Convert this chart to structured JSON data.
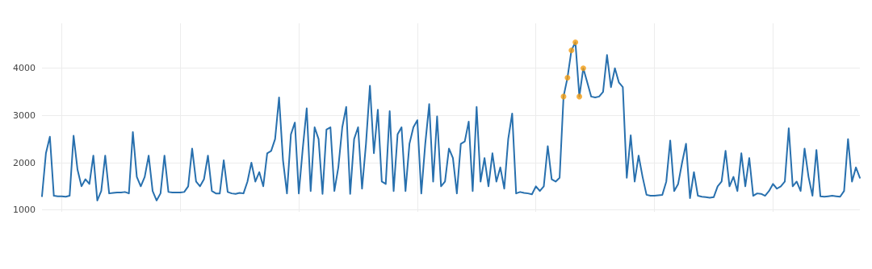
{
  "chart_data": {
    "type": "line",
    "categories": [
      null,
      null,
      null,
      null,
      null,
      null,
      null,
      null,
      null,
      null,
      null,
      null,
      null,
      null,
      null,
      null,
      null,
      null,
      null,
      null,
      null,
      null,
      null,
      null,
      null,
      null,
      null,
      null,
      null,
      null,
      null,
      null,
      null,
      null,
      null,
      null,
      null,
      null,
      null,
      null,
      null,
      null,
      null,
      null,
      null,
      null,
      null,
      null,
      null,
      null,
      null,
      null,
      null,
      null,
      null,
      null,
      null,
      null,
      null,
      null,
      null,
      null,
      null,
      null,
      null,
      null,
      null,
      null,
      null,
      null,
      null,
      null,
      null,
      null,
      null,
      null,
      null,
      null,
      null,
      null,
      null,
      null,
      null,
      null,
      null,
      null,
      null,
      null,
      null,
      null,
      null,
      null,
      null,
      null,
      null,
      null,
      null,
      null,
      null,
      null,
      null,
      null,
      null,
      null,
      null,
      null,
      null,
      null,
      null,
      null,
      null,
      null,
      null,
      null,
      null,
      null,
      null,
      null,
      null,
      null,
      null,
      null,
      null,
      null,
      null,
      null,
      null,
      null,
      null,
      null,
      null,
      null,
      null,
      null,
      null,
      null,
      null,
      null,
      null,
      null,
      null,
      null,
      null,
      null,
      null,
      null,
      null,
      null,
      null,
      null,
      null,
      null,
      null,
      null,
      null,
      null,
      null,
      null,
      null,
      null,
      null,
      null,
      null,
      null,
      null,
      null,
      null,
      null,
      null,
      null,
      null,
      null,
      null,
      null,
      null,
      null,
      null,
      null,
      null,
      null,
      null,
      null,
      null,
      null,
      null,
      null,
      null,
      null,
      null,
      null,
      null,
      null,
      null,
      null,
      null,
      null,
      null,
      null,
      null,
      null,
      null,
      null,
      null,
      null,
      null,
      null,
      null,
      null
    ],
    "series": [
      {
        "color": "#2870ae",
        "marker": "none",
        "values": [
          1290,
          2200,
          2550,
          1300,
          1290,
          1290,
          1280,
          1300,
          2570,
          1850,
          1500,
          1650,
          1550,
          2150,
          1200,
          1400,
          2150,
          1350,
          1360,
          1370,
          1370,
          1380,
          1350,
          2650,
          1700,
          1500,
          1700,
          2150,
          1400,
          1200,
          1350,
          2150,
          1380,
          1370,
          1370,
          1370,
          1380,
          1500,
          2300,
          1600,
          1500,
          1650,
          2150,
          1400,
          1350,
          1350,
          2050,
          1380,
          1350,
          1340,
          1360,
          1350,
          1600,
          2000,
          1600,
          1800,
          1500,
          2200,
          2250,
          2500,
          3380,
          2050,
          1350,
          2600,
          2850,
          1350,
          2300,
          3150,
          1400,
          2750,
          2500,
          1340,
          2700,
          2750,
          1400,
          1900,
          2750,
          3180,
          1340,
          2500,
          2750,
          1450,
          2400,
          3630,
          2200,
          3120,
          1600,
          1550,
          3090,
          1400,
          2600,
          2750,
          1400,
          2400,
          2750,
          2900,
          1350,
          2400,
          3240,
          1600,
          2980,
          1500,
          1600,
          2300,
          2100,
          1350,
          2400,
          2450,
          2870,
          1400,
          3180,
          1600,
          2100,
          1500,
          2200,
          1600,
          1900,
          1450,
          2500,
          3040,
          1350,
          1380,
          1360,
          1350,
          1330,
          1500,
          1400,
          1500,
          2350,
          1650,
          1600,
          1680,
          3400,
          3800,
          4380,
          4550,
          3400,
          4000,
          3700,
          3400,
          3380,
          3400,
          3500,
          4280,
          3600,
          4000,
          3700,
          3600,
          1680,
          2580,
          1600,
          2150,
          1700,
          1320,
          1300,
          1300,
          1310,
          1320,
          1600,
          2470,
          1400,
          1550,
          2000,
          2400,
          1250,
          1800,
          1300,
          1280,
          1270,
          1260,
          1270,
          1500,
          1600,
          2250,
          1500,
          1700,
          1400,
          2200,
          1500,
          2100,
          1300,
          1350,
          1340,
          1300,
          1400,
          1550,
          1450,
          1500,
          1600,
          2730,
          1500,
          1600,
          1400,
          2300,
          1700,
          1300,
          2270,
          1290,
          1280,
          1290,
          1300,
          1290,
          1280,
          1400,
          2500,
          1600,
          1900,
          1680
        ]
      },
      {
        "type": "scatter",
        "color": "#f39c12",
        "marker": "circle",
        "values": [
          null,
          null,
          null,
          null,
          null,
          null,
          null,
          null,
          null,
          null,
          null,
          null,
          null,
          null,
          null,
          null,
          null,
          null,
          null,
          null,
          null,
          null,
          null,
          null,
          null,
          null,
          null,
          null,
          null,
          null,
          null,
          null,
          null,
          null,
          null,
          null,
          null,
          null,
          null,
          null,
          null,
          null,
          null,
          null,
          null,
          null,
          null,
          null,
          null,
          null,
          null,
          null,
          null,
          null,
          null,
          null,
          null,
          null,
          null,
          null,
          null,
          null,
          null,
          null,
          null,
          null,
          null,
          null,
          null,
          null,
          null,
          null,
          null,
          null,
          null,
          null,
          null,
          null,
          null,
          null,
          null,
          null,
          null,
          null,
          null,
          null,
          null,
          null,
          null,
          null,
          null,
          null,
          null,
          null,
          null,
          null,
          null,
          null,
          null,
          null,
          null,
          null,
          null,
          null,
          null,
          null,
          null,
          null,
          null,
          null,
          null,
          null,
          null,
          null,
          null,
          null,
          null,
          null,
          null,
          null,
          null,
          null,
          null,
          null,
          null,
          null,
          null,
          null,
          null,
          null,
          null,
          null,
          3400,
          3800,
          4380,
          4550,
          3400,
          4000,
          null,
          null,
          null,
          null,
          null,
          null,
          null,
          null,
          null,
          null,
          null,
          null,
          null,
          null,
          null,
          null,
          null,
          null,
          null,
          null,
          null,
          null,
          null,
          null,
          null,
          null,
          null,
          null,
          null,
          null,
          null,
          null,
          null,
          null,
          null,
          null,
          null,
          null,
          null,
          null,
          null,
          null,
          null,
          null,
          null,
          null,
          null,
          null,
          null,
          null,
          null,
          null,
          null,
          null,
          null,
          null,
          null,
          null,
          null,
          null,
          null,
          null,
          null,
          null,
          null,
          null,
          null,
          null,
          null,
          null
        ]
      }
    ],
    "ylim": [
      960,
      4950
    ],
    "yticks": [
      1000,
      2000,
      3000,
      4000
    ],
    "grid": true,
    "line_style": "solid"
  }
}
